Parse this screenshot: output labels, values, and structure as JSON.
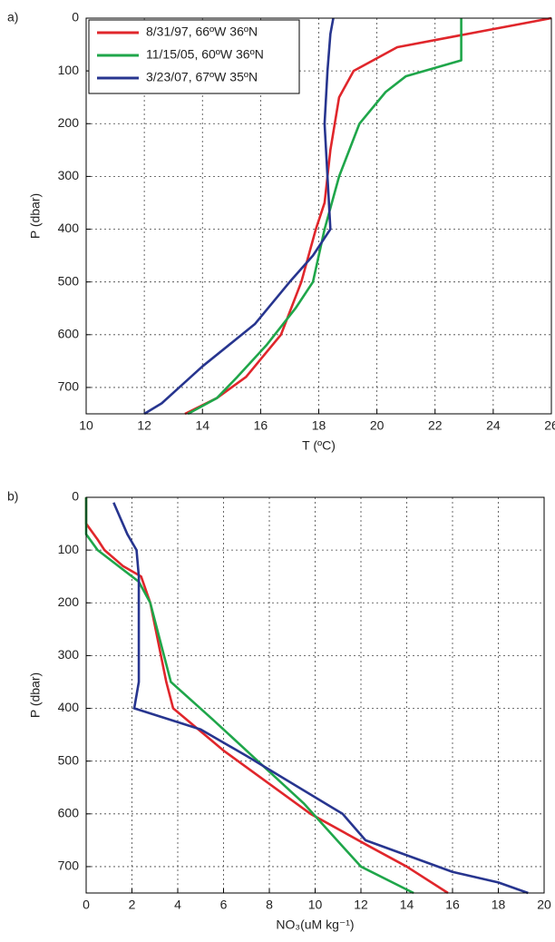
{
  "chart_data": [
    {
      "type": "line",
      "panel_label": "a)",
      "x_label": "T (ºC)",
      "y_label": "P (dbar)",
      "xlim": [
        10,
        26
      ],
      "xticks": [
        10,
        12,
        14,
        16,
        18,
        20,
        22,
        24,
        26
      ],
      "ylim": [
        0,
        750
      ],
      "yticks": [
        0,
        100,
        200,
        300,
        400,
        500,
        600,
        700
      ],
      "y_reversed": true,
      "grid": true,
      "legend": "upper-left",
      "series": [
        {
          "name": "8/31/97, 66ºW 36ºN",
          "color": "#e0262b",
          "x": [
            26,
            20.7,
            19.2,
            18.7,
            18.4,
            18.2,
            17.9,
            17.4,
            16.7,
            15.5,
            14.5,
            13.4
          ],
          "values": [
            0,
            55,
            100,
            150,
            250,
            350,
            400,
            500,
            600,
            680,
            720,
            750
          ]
        },
        {
          "name": "11/15/05, 60ºW 36ºN",
          "color": "#1fa64a",
          "x": [
            22.9,
            22.9,
            21,
            20.3,
            19.4,
            18.7,
            18.2,
            17.8,
            17.2,
            16.2,
            15.2,
            14.5,
            13.5
          ],
          "values": [
            0,
            80,
            110,
            140,
            200,
            300,
            400,
            500,
            550,
            620,
            680,
            720,
            750
          ]
        },
        {
          "name": "3/23/07, 67ºW 35ºN",
          "color": "#27358f",
          "x": [
            18.5,
            18.4,
            18.3,
            18.2,
            18.3,
            18.4,
            17.8,
            17,
            15.8,
            14.9,
            14,
            13.2,
            12.6,
            12
          ],
          "values": [
            0,
            30,
            100,
            200,
            300,
            400,
            450,
            500,
            580,
            620,
            660,
            700,
            730,
            750
          ]
        }
      ]
    },
    {
      "type": "line",
      "panel_label": "b)",
      "x_label": "NO₃(uM kg⁻¹)",
      "y_label": "P (dbar)",
      "xlim": [
        0,
        20
      ],
      "xticks": [
        0,
        2,
        4,
        6,
        8,
        10,
        12,
        14,
        16,
        18,
        20
      ],
      "ylim": [
        0,
        750
      ],
      "yticks": [
        0,
        100,
        200,
        300,
        400,
        500,
        600,
        700
      ],
      "y_reversed": true,
      "grid": true,
      "series": [
        {
          "color": "#e0262b",
          "x": [
            0,
            0,
            0.5,
            0.8,
            1.6,
            2.4,
            2.8,
            3.5,
            3.8,
            6,
            9.8,
            12.3,
            14,
            15.8
          ],
          "values": [
            0,
            50,
            80,
            100,
            130,
            150,
            200,
            350,
            400,
            480,
            600,
            660,
            700,
            750
          ]
        },
        {
          "color": "#1fa64a",
          "x": [
            0,
            0,
            0.5,
            2.3,
            2.8,
            3.7,
            5.5,
            7,
            9.5,
            12,
            14.3
          ],
          "values": [
            0,
            70,
            100,
            160,
            200,
            350,
            420,
            480,
            580,
            700,
            750
          ]
        },
        {
          "color": "#27358f",
          "x": [
            1.2,
            1.8,
            2.2,
            2.3,
            2.3,
            2.1,
            5,
            7,
            11.2,
            12.2,
            16,
            18,
            19.3
          ],
          "values": [
            10,
            70,
            100,
            150,
            350,
            400,
            440,
            490,
            600,
            650,
            710,
            730,
            750
          ]
        }
      ]
    }
  ]
}
